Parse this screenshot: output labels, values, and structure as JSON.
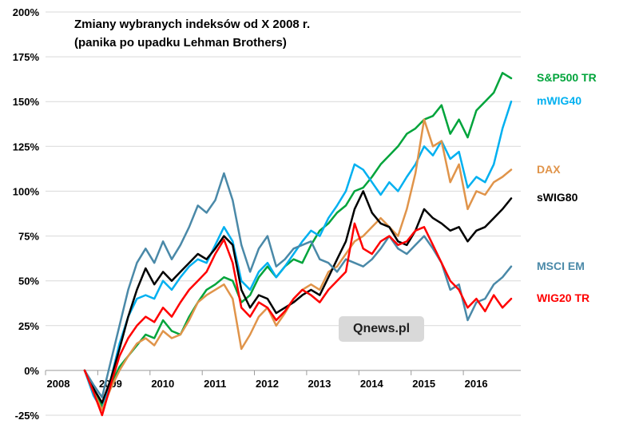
{
  "title": {
    "line1": "Zmiany wybranych indeksów od X 2008 r.",
    "line2": "(panika po upadku Lehman Brothers)"
  },
  "watermark": {
    "text": "Qnews.pl",
    "bg_color": "#d9d9d9",
    "text_color": "#1f1f1f"
  },
  "chart_data": {
    "type": "line",
    "title": "Zmiany wybranych indeksów od X 2008 r. (panika po upadku Lehman Brothers)",
    "xlabel": "",
    "ylabel": "",
    "grid": "horizontal",
    "grid_color": "#d9d9d9",
    "axis_color": "#9b9b9b",
    "legend_position": "right-outside",
    "xlim": [
      2008,
      2017.1
    ],
    "ylim": [
      -25,
      200
    ],
    "x_ticks": [
      2008,
      2009,
      2010,
      2011,
      2012,
      2013,
      2014,
      2015,
      2016
    ],
    "y_ticks": [
      -25,
      0,
      25,
      50,
      75,
      100,
      125,
      150,
      175,
      200
    ],
    "y_tick_suffix": "%",
    "x": [
      2008.75,
      2008.917,
      2009.083,
      2009.25,
      2009.417,
      2009.583,
      2009.75,
      2009.917,
      2010.083,
      2010.25,
      2010.417,
      2010.583,
      2010.75,
      2010.917,
      2011.083,
      2011.25,
      2011.417,
      2011.583,
      2011.75,
      2011.917,
      2012.083,
      2012.25,
      2012.417,
      2012.583,
      2012.75,
      2012.917,
      2013.083,
      2013.25,
      2013.417,
      2013.583,
      2013.75,
      2013.917,
      2014.083,
      2014.25,
      2014.417,
      2014.583,
      2014.75,
      2014.917,
      2015.083,
      2015.25,
      2015.417,
      2015.583,
      2015.75,
      2015.917,
      2016.083,
      2016.25,
      2016.417,
      2016.583,
      2016.75,
      2016.917
    ],
    "series": [
      {
        "name": "S&P500 TR",
        "color": "#00a43b",
        "values": [
          0,
          -10,
          -20,
          -8,
          2,
          8,
          14,
          20,
          18,
          28,
          22,
          20,
          30,
          38,
          45,
          48,
          52,
          50,
          38,
          42,
          52,
          58,
          52,
          58,
          62,
          60,
          70,
          78,
          82,
          88,
          92,
          100,
          102,
          108,
          115,
          120,
          125,
          132,
          135,
          140,
          142,
          148,
          132,
          140,
          130,
          145,
          150,
          155,
          166,
          163
        ]
      },
      {
        "name": "mWIG40",
        "color": "#00b0f0",
        "values": [
          0,
          -14,
          -22,
          -5,
          15,
          30,
          40,
          42,
          40,
          50,
          45,
          52,
          58,
          62,
          60,
          70,
          80,
          72,
          50,
          45,
          55,
          60,
          52,
          58,
          65,
          72,
          78,
          75,
          85,
          92,
          100,
          115,
          112,
          105,
          98,
          105,
          100,
          108,
          115,
          125,
          120,
          128,
          118,
          122,
          102,
          108,
          105,
          115,
          135,
          150
        ]
      },
      {
        "name": "DAX",
        "color": "#e0944a",
        "values": [
          0,
          -12,
          -22,
          -10,
          0,
          8,
          15,
          18,
          14,
          22,
          18,
          20,
          28,
          38,
          42,
          45,
          48,
          40,
          12,
          20,
          30,
          35,
          25,
          32,
          40,
          45,
          48,
          45,
          55,
          58,
          65,
          72,
          75,
          80,
          85,
          80,
          75,
          90,
          110,
          140,
          125,
          128,
          105,
          115,
          90,
          100,
          98,
          105,
          108,
          112
        ]
      },
      {
        "name": "sWIG80",
        "color": "#000000",
        "values": [
          0,
          -10,
          -18,
          -5,
          12,
          30,
          45,
          57,
          48,
          55,
          50,
          55,
          60,
          65,
          62,
          68,
          75,
          70,
          45,
          35,
          42,
          40,
          32,
          35,
          38,
          42,
          45,
          42,
          52,
          62,
          72,
          90,
          100,
          88,
          82,
          80,
          72,
          70,
          78,
          90,
          85,
          82,
          78,
          80,
          72,
          78,
          80,
          85,
          90,
          96
        ]
      },
      {
        "name": "MSCI EM",
        "color": "#4a89a8",
        "values": [
          0,
          -8,
          -15,
          5,
          25,
          45,
          60,
          68,
          60,
          72,
          62,
          70,
          80,
          92,
          88,
          95,
          110,
          95,
          70,
          55,
          68,
          75,
          58,
          62,
          68,
          70,
          72,
          62,
          60,
          55,
          62,
          60,
          58,
          62,
          68,
          75,
          68,
          65,
          70,
          75,
          68,
          60,
          45,
          48,
          28,
          38,
          40,
          48,
          52,
          58
        ]
      },
      {
        "name": "WIG20 TR",
        "color": "#ff0000",
        "values": [
          0,
          -12,
          -25,
          -8,
          8,
          18,
          25,
          30,
          27,
          35,
          30,
          38,
          45,
          50,
          55,
          65,
          73,
          60,
          35,
          30,
          38,
          35,
          28,
          33,
          40,
          45,
          42,
          38,
          45,
          50,
          55,
          82,
          68,
          65,
          72,
          75,
          70,
          72,
          78,
          80,
          70,
          60,
          50,
          45,
          35,
          40,
          33,
          42,
          35,
          40
        ]
      }
    ]
  }
}
